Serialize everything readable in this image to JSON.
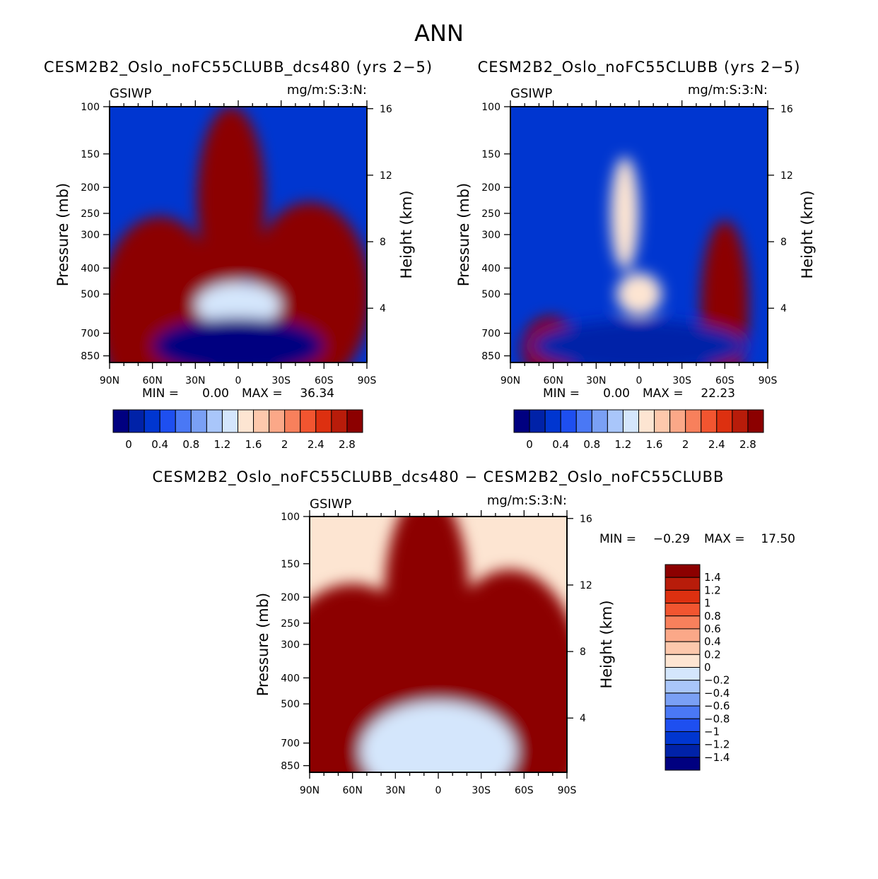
{
  "page_title": "ANN",
  "chart_data": [
    {
      "type": "heatmap",
      "subtype": "filled-contour",
      "title": "CESM2B2_Oslo_noFC55CLUBB_dcs480 (yrs 2−5)",
      "variable": "GSIWP",
      "units": "mg/m:S:3:N:",
      "ylabel": "Pressure (mb)",
      "y2label": "Height (km)",
      "x_ticks": [
        "90N",
        "60N",
        "30N",
        "0",
        "30S",
        "60S",
        "90S"
      ],
      "y_ticks": [
        "100",
        "150",
        "200",
        "250",
        "300",
        "400",
        "500",
        "700",
        "850"
      ],
      "y2_ticks": [
        "16",
        "12",
        "8",
        "4"
      ],
      "stats": {
        "min_label": "MIN =",
        "min": "0.00",
        "max_label": "MAX =",
        "max": "36.34"
      },
      "colorbar_labels": [
        "0",
        "0.4",
        "0.8",
        "1.2",
        "1.6",
        "2",
        "2.4",
        "2.8"
      ],
      "regions": [
        {
          "lat": 55,
          "p": 600,
          "value": 3.2
        },
        {
          "lat": -50,
          "p": 500,
          "value": 3.2
        },
        {
          "lat": 5,
          "p": 220,
          "value": 3.2
        },
        {
          "lat": 0,
          "p": 550,
          "value": 1.5
        },
        {
          "lat": 0,
          "p": 780,
          "value": 0.0
        }
      ]
    },
    {
      "type": "heatmap",
      "subtype": "filled-contour",
      "title": "CESM2B2_Oslo_noFC55CLUBB (yrs 2−5)",
      "variable": "GSIWP",
      "units": "mg/m:S:3:N:",
      "ylabel": "Pressure (mb)",
      "y2label": "Height (km)",
      "x_ticks": [
        "90N",
        "60N",
        "30N",
        "0",
        "30S",
        "60S",
        "90S"
      ],
      "y_ticks": [
        "100",
        "150",
        "200",
        "250",
        "300",
        "400",
        "500",
        "700",
        "850"
      ],
      "y2_ticks": [
        "16",
        "12",
        "8",
        "4"
      ],
      "stats": {
        "min_label": "MIN =",
        "min": "0.00",
        "max_label": "MAX =",
        "max": "22.23"
      },
      "colorbar_labels": [
        "0",
        "0.4",
        "0.8",
        "1.2",
        "1.6",
        "2",
        "2.4",
        "2.8"
      ],
      "regions": [
        {
          "lat": 62,
          "p": 800,
          "value": 3.2
        },
        {
          "lat": -60,
          "p": 550,
          "value": 3.2
        },
        {
          "lat": 10,
          "p": 250,
          "value": 1.6
        },
        {
          "lat": 0,
          "p": 500,
          "value": 1.6
        },
        {
          "lat": 0,
          "p": 780,
          "value": 0.2
        }
      ]
    },
    {
      "type": "heatmap",
      "subtype": "filled-contour",
      "title": "CESM2B2_Oslo_noFC55CLUBB_dcs480 − CESM2B2_Oslo_noFC55CLUBB",
      "variable": "GSIWP",
      "units": "mg/m:S:3:N:",
      "ylabel": "Pressure (mb)",
      "y2label": "Height (km)",
      "x_ticks": [
        "90N",
        "60N",
        "30N",
        "0",
        "30S",
        "60S",
        "90S"
      ],
      "y_ticks": [
        "100",
        "150",
        "200",
        "250",
        "300",
        "400",
        "500",
        "700",
        "850"
      ],
      "y2_ticks": [
        "16",
        "12",
        "8",
        "4"
      ],
      "stats": {
        "min_label": "MIN =",
        "min": "−0.29",
        "max_label": "MAX =",
        "max": "17.50"
      },
      "colorbar_labels": [
        "1.4",
        "1.2",
        "1",
        "0.8",
        "0.6",
        "0.4",
        "0.2",
        "0",
        "−0.2",
        "−0.4",
        "−0.6",
        "−0.8",
        "−1",
        "−1.2",
        "−1.4"
      ],
      "regions": [
        {
          "lat": 60,
          "p": 500,
          "value": 1.5
        },
        {
          "lat": -50,
          "p": 500,
          "value": 1.5
        },
        {
          "lat": 8,
          "p": 200,
          "value": 1.5
        },
        {
          "lat": 0,
          "p": 750,
          "value": -0.1
        }
      ]
    }
  ],
  "colors": {
    "seq": [
      "#000080",
      "#0022a8",
      "#0036d0",
      "#1e4ff0",
      "#4a78f5",
      "#7aa0f5",
      "#a9c6fa",
      "#d4e6fc",
      "#fde5d2",
      "#fdc8ac",
      "#fba888",
      "#f8805c",
      "#f25530",
      "#dd3010",
      "#b81c0a",
      "#8c0000"
    ],
    "diff": [
      "#8c0000",
      "#b81c0a",
      "#dd3010",
      "#f25530",
      "#f8805c",
      "#fba888",
      "#fdc8ac",
      "#fde5d2",
      "#d4e6fc",
      "#a9c6fa",
      "#7aa0f5",
      "#4a78f5",
      "#1e4ff0",
      "#0036d0",
      "#0022a8",
      "#000080"
    ]
  }
}
